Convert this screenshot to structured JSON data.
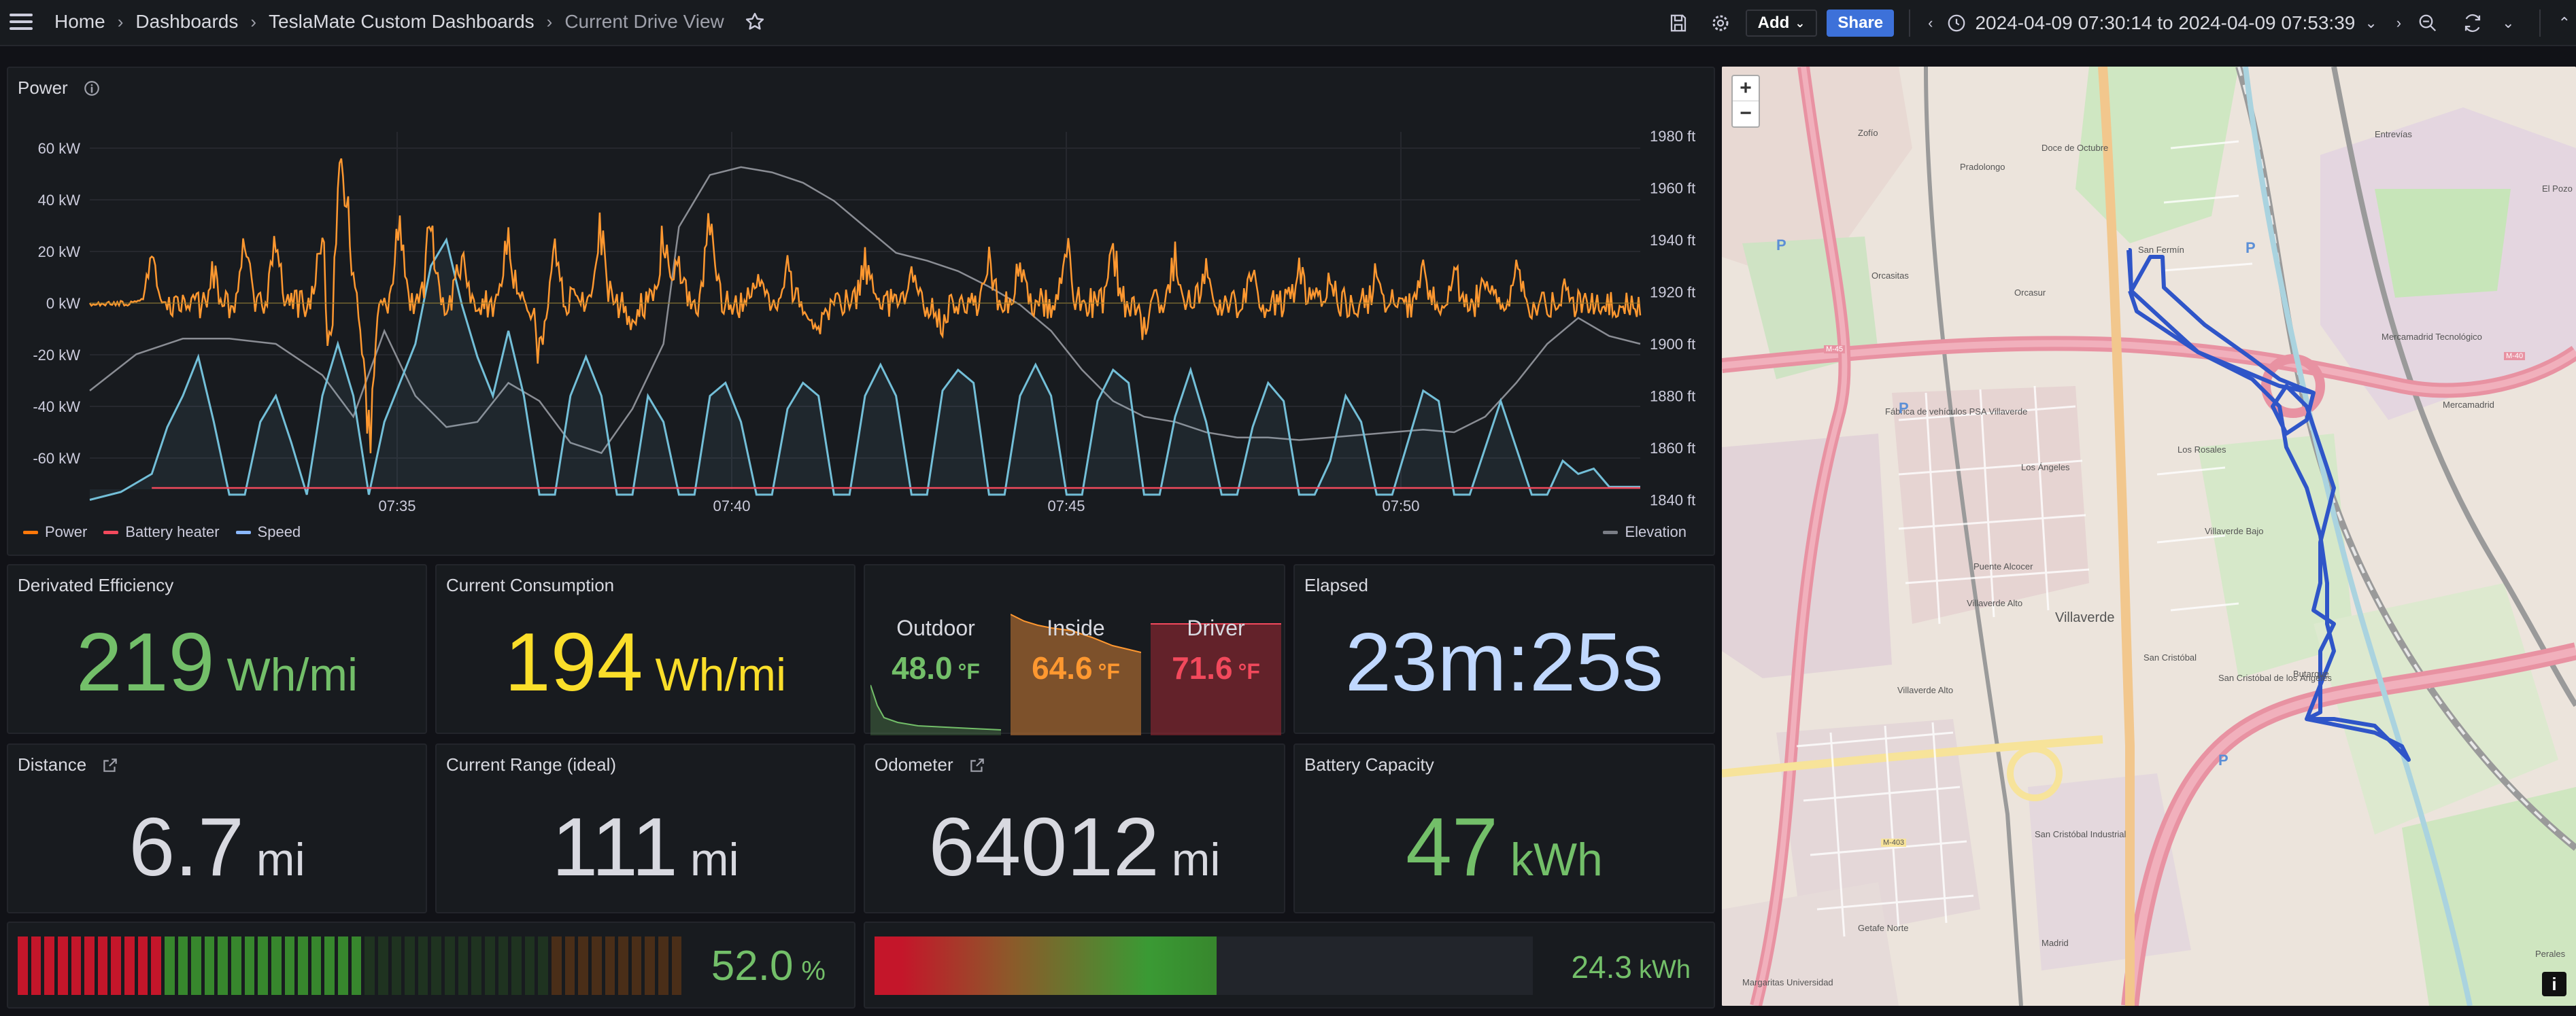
{
  "topbar": {
    "breadcrumbs": [
      "Home",
      "Dashboards",
      "TeslaMate Custom Dashboards",
      "Current Drive View"
    ],
    "add_label": "Add",
    "share_label": "Share",
    "time_range": "2024-04-09 07:30:14 to 2024-04-09 07:53:39"
  },
  "power_panel": {
    "title": "Power",
    "legend_left": [
      {
        "name": "Power",
        "color": "#ff780a"
      },
      {
        "name": "Battery heater",
        "color": "#f2495c"
      },
      {
        "name": "Speed",
        "color": "#8ab8ff"
      }
    ],
    "legend_right": [
      {
        "name": "Elevation",
        "color": "#7a7d85"
      }
    ]
  },
  "chart_data": {
    "type": "line",
    "x_ticks": [
      "07:35",
      "07:40",
      "07:45",
      "07:50"
    ],
    "x_range": [
      "07:30:14",
      "07:53:39"
    ],
    "y_left_ticks": [
      "60 kW",
      "40 kW",
      "20 kW",
      "0 kW",
      "-20 kW",
      "-40 kW",
      "-60 kW"
    ],
    "y_left_range": [
      -70,
      70
    ],
    "y_right_ticks": [
      "1980 ft",
      "1960 ft",
      "1940 ft",
      "1920 ft",
      "1900 ft",
      "1880 ft",
      "1860 ft",
      "1840 ft"
    ],
    "y_right_range": [
      1840,
      1980
    ],
    "series": [
      {
        "name": "Elevation",
        "axis": "right",
        "color": "#8a8d94",
        "x": [
          0.0,
          0.03,
          0.06,
          0.09,
          0.12,
          0.15,
          0.17,
          0.19,
          0.21,
          0.23,
          0.25,
          0.27,
          0.29,
          0.31,
          0.33,
          0.35,
          0.37,
          0.38,
          0.4,
          0.42,
          0.44,
          0.46,
          0.48,
          0.5,
          0.52,
          0.54,
          0.56,
          0.58,
          0.6,
          0.62,
          0.64,
          0.66,
          0.68,
          0.7,
          0.72,
          0.74,
          0.76,
          0.78,
          0.8,
          0.82,
          0.84,
          0.86,
          0.88,
          0.9,
          0.92,
          0.94,
          0.96,
          0.98,
          1.0
        ],
        "y": [
          1882,
          1896,
          1902,
          1902,
          1900,
          1888,
          1872,
          1905,
          1880,
          1868,
          1870,
          1885,
          1878,
          1862,
          1858,
          1875,
          1900,
          1945,
          1965,
          1968,
          1966,
          1962,
          1955,
          1945,
          1935,
          1932,
          1928,
          1922,
          1915,
          1905,
          1890,
          1878,
          1872,
          1870,
          1866,
          1864,
          1864,
          1863,
          1864,
          1865,
          1866,
          1867,
          1866,
          1872,
          1885,
          1900,
          1910,
          1903,
          1900
        ]
      },
      {
        "name": "Speed",
        "axis": "right_speed",
        "color": "#73bfd8",
        "x": [
          0.0,
          0.02,
          0.04,
          0.05,
          0.06,
          0.07,
          0.08,
          0.09,
          0.1,
          0.11,
          0.12,
          0.13,
          0.14,
          0.15,
          0.16,
          0.17,
          0.18,
          0.19,
          0.2,
          0.21,
          0.22,
          0.23,
          0.24,
          0.25,
          0.26,
          0.27,
          0.28,
          0.29,
          0.3,
          0.31,
          0.32,
          0.33,
          0.34,
          0.35,
          0.36,
          0.37,
          0.38,
          0.39,
          0.4,
          0.41,
          0.42,
          0.43,
          0.44,
          0.45,
          0.46,
          0.47,
          0.48,
          0.49,
          0.5,
          0.51,
          0.52,
          0.53,
          0.54,
          0.55,
          0.56,
          0.57,
          0.58,
          0.59,
          0.6,
          0.61,
          0.62,
          0.63,
          0.64,
          0.65,
          0.66,
          0.67,
          0.68,
          0.69,
          0.7,
          0.71,
          0.72,
          0.73,
          0.74,
          0.75,
          0.76,
          0.77,
          0.78,
          0.79,
          0.8,
          0.81,
          0.82,
          0.83,
          0.84,
          0.85,
          0.86,
          0.87,
          0.88,
          0.89,
          0.9,
          0.91,
          0.92,
          0.93,
          0.94,
          0.95,
          0.96,
          0.97,
          0.98,
          1.0
        ],
        "y": [
          1840,
          1843,
          1850,
          1868,
          1880,
          1895,
          1870,
          1842,
          1842,
          1870,
          1880,
          1862,
          1842,
          1880,
          1900,
          1880,
          1842,
          1870,
          1885,
          1900,
          1930,
          1940,
          1915,
          1895,
          1880,
          1905,
          1880,
          1842,
          1842,
          1880,
          1895,
          1880,
          1842,
          1842,
          1880,
          1870,
          1842,
          1842,
          1880,
          1885,
          1870,
          1842,
          1842,
          1875,
          1885,
          1880,
          1842,
          1842,
          1880,
          1892,
          1880,
          1842,
          1842,
          1882,
          1890,
          1885,
          1842,
          1842,
          1880,
          1892,
          1880,
          1842,
          1842,
          1878,
          1890,
          1885,
          1842,
          1842,
          1872,
          1890,
          1870,
          1842,
          1842,
          1868,
          1885,
          1878,
          1842,
          1842,
          1855,
          1880,
          1870,
          1842,
          1842,
          1862,
          1882,
          1878,
          1842,
          1842,
          1860,
          1878,
          1860,
          1842,
          1842,
          1855,
          1850,
          1852,
          1845,
          1845
        ]
      },
      {
        "name": "Power",
        "axis": "left",
        "color": "#ff9830"
      },
      {
        "name": "Battery heater",
        "axis": "left",
        "color": "#f2495c",
        "constant": -67
      }
    ]
  },
  "stats": {
    "efficiency": {
      "title": "Derivated Efficiency",
      "value": "219",
      "unit": "Wh/mi"
    },
    "consumption": {
      "title": "Current Consumption",
      "value": "194",
      "unit": "Wh/mi"
    },
    "elapsed": {
      "title": "Elapsed",
      "value": "23m:25s"
    },
    "distance": {
      "title": "Distance",
      "value": "6.7",
      "unit": "mi"
    },
    "range": {
      "title": "Current Range (ideal)",
      "value": "111",
      "unit": "mi"
    },
    "odometer": {
      "title": "Odometer",
      "value": "64012",
      "unit": "mi"
    },
    "battery_capacity": {
      "title": "Battery Capacity",
      "value": "47",
      "unit": "kWh"
    },
    "soc": {
      "value": "52.0",
      "unit": "%",
      "fraction": 0.52
    },
    "energy": {
      "value": "24.3",
      "unit": "kWh",
      "fraction": 0.52
    }
  },
  "temps": {
    "outdoor": {
      "label": "Outdoor",
      "value": "48.0",
      "unit": "°F"
    },
    "inside": {
      "label": "Inside",
      "value": "64.6",
      "unit": "°F"
    },
    "driver": {
      "label": "Driver",
      "value": "71.6",
      "unit": "°F"
    }
  },
  "map": {
    "zoom_in": "+",
    "zoom_out": "−",
    "info": "i",
    "labels": [
      "Zofío",
      "Doce de Octubre",
      "Pradolongo",
      "Orcasitas",
      "Orcasur",
      "San Fermín",
      "Fábrica de vehículos PSA Villaverde",
      "Los Rosales",
      "Los Ángeles",
      "Villaverde Bajo",
      "Puente Alcocer",
      "Villaverde Alto",
      "Villaverde",
      "San Cristóbal",
      "San Cristóbal de los Ángeles",
      "Butarque",
      "Villaverde Alto",
      "San Cristóbal Industrial",
      "Getafe Norte",
      "Margaritas Universidad",
      "Madrid",
      "Mercamadrid",
      "Entrevías",
      "El Pozo",
      "Perales",
      "Mercamadrid Tecnológico",
      "M-40",
      "M-45",
      "M-403",
      "P"
    ]
  },
  "colors": {
    "green": "#73bf69",
    "yellow": "#fade2a",
    "lightblue": "#c0d8ff",
    "orange": "#ff9830",
    "red": "#f2495c",
    "route": "#2f55c8"
  }
}
